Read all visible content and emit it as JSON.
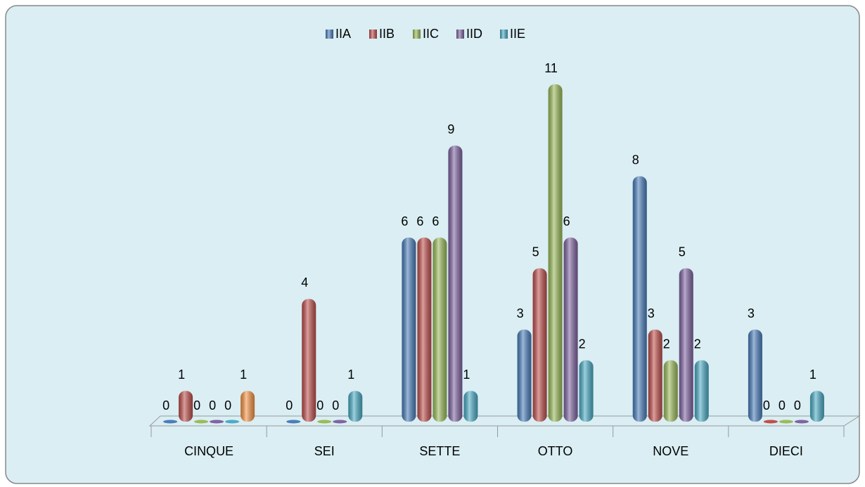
{
  "chart_data": {
    "type": "bar",
    "categories": [
      "CINQUE",
      "SEI",
      "SETTE",
      "OTTO",
      "NOVE",
      "DIECI"
    ],
    "series": [
      {
        "name": "IIA",
        "color": "#4a7ebb",
        "values": [
          0,
          0,
          6,
          3,
          8,
          3
        ]
      },
      {
        "name": "IIB",
        "color": "#c0504d",
        "values": [
          1,
          4,
          6,
          5,
          3,
          0
        ]
      },
      {
        "name": "IIC",
        "color": "#9bbb59",
        "values": [
          0,
          0,
          6,
          11,
          2,
          0
        ]
      },
      {
        "name": "IID",
        "color": "#8064a2",
        "values": [
          0,
          0,
          9,
          6,
          5,
          0
        ]
      },
      {
        "name": "IIE",
        "color": "#4bacc6",
        "values": [
          0,
          1,
          1,
          2,
          2,
          1
        ]
      },
      {
        "color": "#f79646",
        "values": [
          1,
          null,
          null,
          null,
          null,
          null
        ]
      }
    ],
    "ylim": [
      0,
      11
    ],
    "legend": "top"
  }
}
